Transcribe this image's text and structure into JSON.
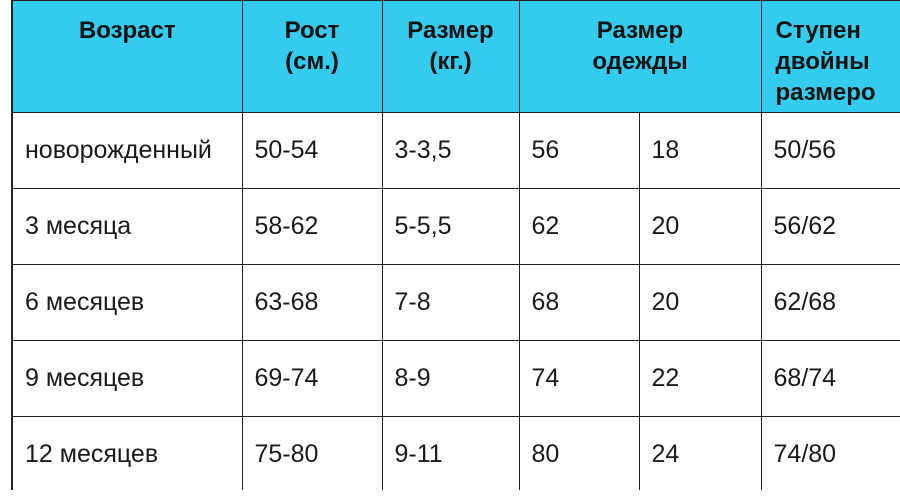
{
  "headers": {
    "age": [
      "Возраст"
    ],
    "height": [
      "Рост",
      "(см.)"
    ],
    "weight": [
      "Размер",
      "(кг.)"
    ],
    "clothes": [
      "Размер",
      "одежды"
    ],
    "double": [
      "Ступен",
      "двойны",
      "размеро"
    ]
  },
  "rows": [
    {
      "age": "новорожденный",
      "height": "50-54",
      "weight": "3-3,5",
      "size_a": "56",
      "size_b": "18",
      "double": "50/56"
    },
    {
      "age": "3 месяца",
      "height": "58-62",
      "weight": "5-5,5",
      "size_a": "62",
      "size_b": "20",
      "double": "56/62"
    },
    {
      "age": "6 месяцев",
      "height": "63-68",
      "weight": "7-8",
      "size_a": "68",
      "size_b": "20",
      "double": "62/68"
    },
    {
      "age": "9 месяцев",
      "height": "69-74",
      "weight": "8-9",
      "size_a": "74",
      "size_b": "22",
      "double": "68/74"
    },
    {
      "age": "12 месяцев",
      "height": "75-80",
      "weight": "9-11",
      "size_a": "80",
      "size_b": "24",
      "double": "74/80"
    }
  ]
}
